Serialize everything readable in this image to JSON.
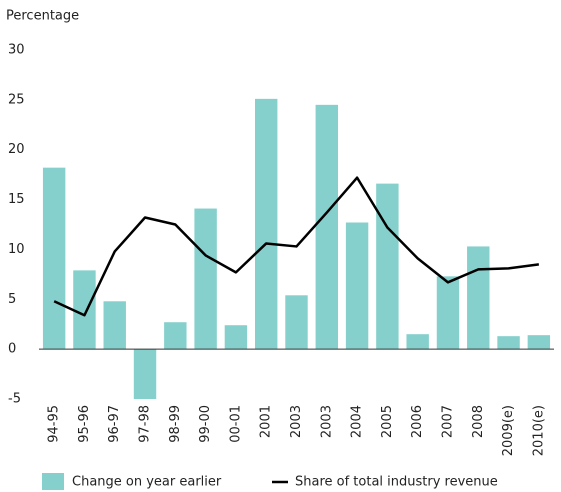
{
  "chart_data": {
    "type": "bar",
    "y_label": "Percentage",
    "categories": [
      "94-95",
      "95-96",
      "96-97",
      "97-98",
      "98-99",
      "99-00",
      "00-01",
      "2001",
      "2003",
      "2003",
      "2004",
      "2005",
      "2006",
      "2007",
      "2008",
      "2009(e)",
      "2010(e)"
    ],
    "series": [
      {
        "name": "Change on year earlier",
        "type": "bar",
        "color": "#85d0cc",
        "values": [
          18.2,
          7.9,
          4.8,
          -5,
          2.7,
          14.1,
          2.4,
          25.1,
          5.4,
          24.5,
          12.7,
          16.6,
          1.5,
          7.3,
          10.3,
          1.3,
          1.4
        ]
      },
      {
        "name": "Share of total industry revenue",
        "type": "line",
        "color": "#000000",
        "values": [
          4.8,
          3.4,
          9.8,
          13.2,
          12.5,
          9.4,
          7.7,
          10.6,
          10.3,
          13.7,
          17.2,
          12.2,
          9.1,
          6.7,
          8.0,
          8.1,
          8.5
        ]
      }
    ],
    "ylim": [
      -5,
      30
    ],
    "yticks": [
      -5,
      0,
      5,
      10,
      15,
      20,
      25,
      30
    ],
    "grid": false,
    "legend": "bottom"
  }
}
